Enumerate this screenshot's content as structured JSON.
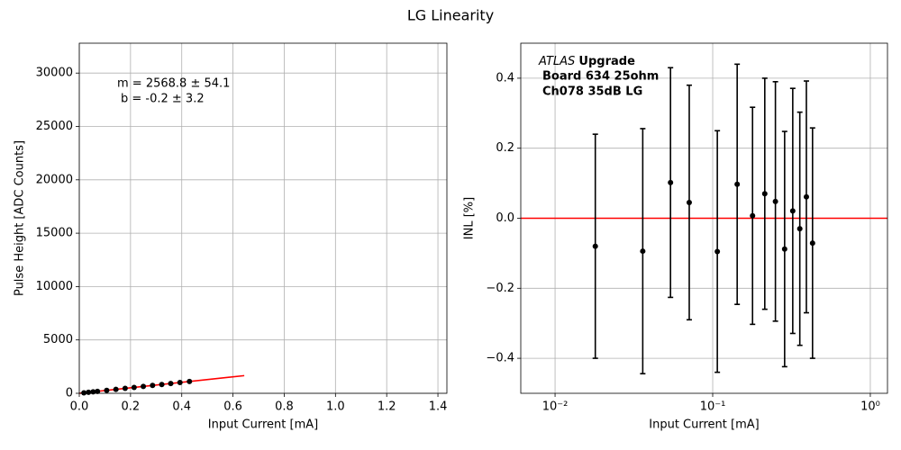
{
  "title": "LG Linearity",
  "chart_data": [
    {
      "type": "scatter",
      "xlabel": "Input Current [mA]",
      "ylabel": "Pulse Height [ADC Counts]",
      "xlim": [
        0,
        1.435
      ],
      "ylim": [
        0,
        32800
      ],
      "log_x": false,
      "grid": true,
      "xticks": [
        {
          "value": 0,
          "label": "0.0"
        },
        0.2,
        0.4,
        0.6,
        0.8,
        {
          "value": 1,
          "label": "1.0"
        },
        1.2,
        1.4
      ],
      "yticks": [
        0,
        5000,
        10000,
        15000,
        20000,
        25000,
        30000
      ],
      "annotations": [
        "m = 2568.8 ± 54.1",
        "b = -0.2 ± 3.2"
      ],
      "series": [
        {
          "color": "#ff0000",
          "mode": "line",
          "x": [
            0,
            0.644
          ],
          "values": [
            -0.2,
            1654
          ]
        },
        {
          "color": "#000000",
          "mode": "points",
          "x": [
            0.018,
            0.036,
            0.054,
            0.071,
            0.107,
            0.143,
            0.179,
            0.214,
            0.25,
            0.286,
            0.322,
            0.357,
            0.393,
            0.43
          ],
          "values": [
            46,
            92,
            139,
            182,
            275,
            367,
            460,
            550,
            642,
            735,
            827,
            917,
            1010,
            1104
          ]
        }
      ]
    },
    {
      "type": "scatter",
      "xlabel": "Input Current [mA]",
      "ylabel": "INL [%]",
      "xlim": [
        0.00606,
        1.285
      ],
      "ylim": [
        -0.5,
        0.5
      ],
      "log_x": true,
      "grid": true,
      "xticks": [
        {
          "value": 0.01,
          "label": "10⁻²"
        },
        {
          "value": 0.1,
          "label": "10⁻¹"
        },
        {
          "value": 1,
          "label": "10⁰"
        }
      ],
      "yticks": [
        {
          "value": -0.4,
          "label": "−0.4"
        },
        {
          "value": -0.2,
          "label": "−0.2"
        },
        {
          "value": 0,
          "label": "0.0"
        },
        0.2,
        0.4
      ],
      "annotations": [
        "ATLAS",
        "Upgrade",
        "Board 634 25ohm",
        "Ch078 35dB LG"
      ],
      "hline": 0,
      "hline_color": "#ff0000",
      "series": [
        {
          "color": "#000000",
          "mode": "points",
          "x": [
            0.018,
            0.036,
            0.054,
            0.071,
            0.107,
            0.143,
            0.179,
            0.214,
            0.25,
            0.286,
            0.322,
            0.357,
            0.393,
            0.43
          ],
          "values": [
            -0.08,
            -0.094,
            0.102,
            0.045,
            -0.095,
            0.097,
            0.007,
            0.07,
            0.048,
            -0.088,
            0.021,
            -0.03,
            0.061,
            -0.071
          ],
          "errors": [
            0.32,
            0.35,
            0.328,
            0.335,
            0.345,
            0.343,
            0.31,
            0.33,
            0.342,
            0.336,
            0.35,
            0.333,
            0.331,
            0.329
          ]
        }
      ]
    }
  ]
}
